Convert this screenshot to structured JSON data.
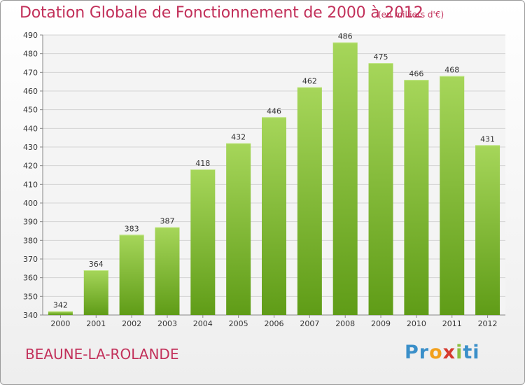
{
  "header": {
    "title": "Dotation Globale de Fonctionnement de 2000 à 2012",
    "unit": "(en milliers d'€)"
  },
  "footer": {
    "commune": "BEAUNE-LA-ROLANDE",
    "logo_parts": [
      {
        "text": "Pr",
        "color": "#3a8fc9"
      },
      {
        "text": "o",
        "color": "#f2a01c"
      },
      {
        "text": "x",
        "color": "#d63a2f"
      },
      {
        "text": "i",
        "color": "#8cbf3f"
      },
      {
        "text": "ti",
        "color": "#3a8fc9"
      }
    ]
  },
  "colors": {
    "title": "#c2305a",
    "bar_top": "#a6d65a",
    "bar_bottom": "#5f9c17",
    "grid": "#d4d4d4"
  },
  "chart_data": {
    "type": "bar",
    "title": "Dotation Globale de Fonctionnement de 2000 à 2012",
    "subtitle": "(en milliers d'€)",
    "categories": [
      "2000",
      "2001",
      "2002",
      "2003",
      "2004",
      "2005",
      "2006",
      "2007",
      "2008",
      "2009",
      "2010",
      "2011",
      "2012"
    ],
    "values": [
      342,
      364,
      383,
      387,
      418,
      432,
      446,
      462,
      486,
      475,
      466,
      468,
      431
    ],
    "ylim": [
      340,
      490
    ],
    "yticks": [
      340,
      350,
      360,
      370,
      380,
      390,
      400,
      410,
      420,
      430,
      440,
      450,
      460,
      470,
      480,
      490
    ],
    "grid": true
  }
}
